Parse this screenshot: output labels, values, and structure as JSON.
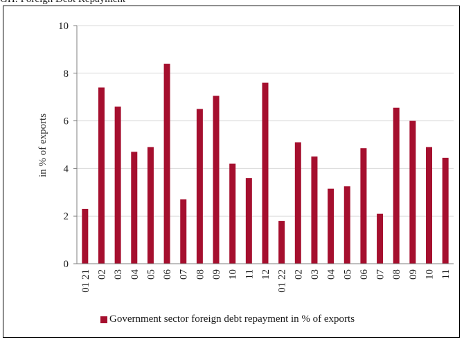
{
  "page": {
    "title": "GH: Foreign Debt Repayment"
  },
  "chart_data": {
    "type": "bar",
    "title": "GH: Foreign Debt Repayment",
    "ylabel": "in % of exports",
    "xlabel": "",
    "ylim": [
      0,
      10
    ],
    "yticks": [
      0,
      2,
      4,
      6,
      8,
      10
    ],
    "grid": true,
    "legend_position": "bottom",
    "categories": [
      "01 21",
      "02",
      "03",
      "04",
      "05",
      "06",
      "07",
      "08",
      "09",
      "10",
      "11",
      "12",
      "01 22",
      "02",
      "03",
      "04",
      "05",
      "06",
      "07",
      "08",
      "09",
      "10",
      "11"
    ],
    "series": [
      {
        "name": "Government sector foreign debt repayment in % of exports",
        "color": "#a50f2e",
        "values": [
          2.3,
          7.4,
          6.6,
          4.7,
          4.9,
          8.4,
          2.7,
          6.5,
          7.05,
          4.2,
          3.6,
          7.6,
          1.8,
          5.1,
          4.5,
          3.15,
          3.25,
          4.85,
          2.1,
          6.55,
          6.0,
          4.9,
          4.45
        ]
      }
    ]
  }
}
